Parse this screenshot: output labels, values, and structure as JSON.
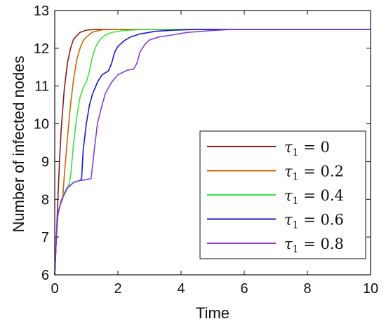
{
  "chart_data": {
    "type": "line",
    "xlabel": "Time",
    "ylabel": "Number of infected nodes",
    "xlim": [
      0,
      10
    ],
    "ylim": [
      6,
      13
    ],
    "xticks": [
      "0",
      "2",
      "4",
      "6",
      "8",
      "10"
    ],
    "yticks": [
      "6",
      "7",
      "8",
      "9",
      "10",
      "11",
      "12",
      "13"
    ],
    "grid": false,
    "legend_position": "bottom-right",
    "series": [
      {
        "name": "τ1 = 0",
        "color": "#8b1a1a",
        "points": [
          [
            0,
            6.0
          ],
          [
            0.05,
            7.0
          ],
          [
            0.1,
            8.0
          ],
          [
            0.15,
            9.0
          ],
          [
            0.2,
            9.8
          ],
          [
            0.3,
            10.9
          ],
          [
            0.4,
            11.6
          ],
          [
            0.5,
            12.0
          ],
          [
            0.6,
            12.25
          ],
          [
            0.8,
            12.42
          ],
          [
            1.0,
            12.48
          ],
          [
            1.3,
            12.5
          ],
          [
            10,
            12.5
          ]
        ]
      },
      {
        "name": "τ1 = 0.2",
        "color": "#c46a00",
        "points": [
          [
            0,
            6.0
          ],
          [
            0.05,
            7.0
          ],
          [
            0.1,
            7.6
          ],
          [
            0.15,
            7.8
          ],
          [
            0.2,
            7.9
          ],
          [
            0.25,
            8.0
          ],
          [
            0.3,
            8.6
          ],
          [
            0.4,
            9.6
          ],
          [
            0.5,
            10.5
          ],
          [
            0.6,
            11.2
          ],
          [
            0.7,
            11.7
          ],
          [
            0.8,
            12.0
          ],
          [
            0.9,
            12.2
          ],
          [
            1.0,
            12.3
          ],
          [
            1.2,
            12.43
          ],
          [
            1.5,
            12.49
          ],
          [
            2.0,
            12.5
          ],
          [
            10,
            12.5
          ]
        ]
      },
      {
        "name": "τ1 = 0.4",
        "color": "#3ee23e",
        "points": [
          [
            0,
            6.0
          ],
          [
            0.05,
            7.0
          ],
          [
            0.1,
            7.6
          ],
          [
            0.2,
            7.95
          ],
          [
            0.35,
            8.25
          ],
          [
            0.45,
            8.4
          ],
          [
            0.5,
            8.6
          ],
          [
            0.6,
            9.5
          ],
          [
            0.7,
            10.2
          ],
          [
            0.8,
            10.7
          ],
          [
            0.9,
            10.95
          ],
          [
            1.0,
            11.1
          ],
          [
            1.1,
            11.4
          ],
          [
            1.2,
            11.8
          ],
          [
            1.3,
            12.05
          ],
          [
            1.45,
            12.25
          ],
          [
            1.6,
            12.35
          ],
          [
            1.8,
            12.42
          ],
          [
            2.2,
            12.47
          ],
          [
            2.8,
            12.5
          ],
          [
            10,
            12.5
          ]
        ]
      },
      {
        "name": "τ1 = 0.6",
        "color": "#1818cc",
        "points": [
          [
            0,
            6.0
          ],
          [
            0.05,
            7.0
          ],
          [
            0.1,
            7.6
          ],
          [
            0.2,
            7.95
          ],
          [
            0.4,
            8.3
          ],
          [
            0.6,
            8.45
          ],
          [
            0.8,
            8.5
          ],
          [
            0.85,
            8.55
          ],
          [
            0.9,
            9.3
          ],
          [
            1.0,
            10.0
          ],
          [
            1.1,
            10.5
          ],
          [
            1.2,
            10.8
          ],
          [
            1.35,
            11.1
          ],
          [
            1.5,
            11.3
          ],
          [
            1.7,
            11.4
          ],
          [
            1.8,
            11.6
          ],
          [
            1.9,
            11.9
          ],
          [
            2.0,
            12.05
          ],
          [
            2.2,
            12.2
          ],
          [
            2.4,
            12.3
          ],
          [
            2.7,
            12.38
          ],
          [
            3.2,
            12.45
          ],
          [
            3.8,
            12.48
          ],
          [
            4.5,
            12.5
          ],
          [
            10,
            12.5
          ]
        ]
      },
      {
        "name": "τ1 = 0.8",
        "color": "#8a3adf",
        "points": [
          [
            0,
            6.0
          ],
          [
            0.05,
            7.0
          ],
          [
            0.1,
            7.6
          ],
          [
            0.2,
            7.95
          ],
          [
            0.4,
            8.3
          ],
          [
            0.6,
            8.45
          ],
          [
            0.8,
            8.5
          ],
          [
            1.0,
            8.52
          ],
          [
            1.15,
            8.55
          ],
          [
            1.25,
            9.3
          ],
          [
            1.35,
            10.0
          ],
          [
            1.5,
            10.5
          ],
          [
            1.6,
            10.8
          ],
          [
            1.8,
            11.1
          ],
          [
            2.0,
            11.3
          ],
          [
            2.3,
            11.42
          ],
          [
            2.5,
            11.45
          ],
          [
            2.6,
            11.6
          ],
          [
            2.7,
            11.9
          ],
          [
            2.85,
            12.1
          ],
          [
            3.0,
            12.22
          ],
          [
            3.3,
            12.3
          ],
          [
            3.7,
            12.35
          ],
          [
            4.2,
            12.42
          ],
          [
            5.0,
            12.47
          ],
          [
            5.6,
            12.5
          ],
          [
            10,
            12.5
          ]
        ]
      }
    ],
    "legend": [
      {
        "label": "τ1 = 0",
        "sym": "τ",
        "sub": "1",
        "rhs": "= 0"
      },
      {
        "label": "τ1 = 0.2",
        "sym": "τ",
        "sub": "1",
        "rhs": "= 0.2"
      },
      {
        "label": "τ1 = 0.4",
        "sym": "τ",
        "sub": "1",
        "rhs": "= 0.4"
      },
      {
        "label": "τ1 = 0.6",
        "sym": "τ",
        "sub": "1",
        "rhs": "= 0.6"
      },
      {
        "label": "τ1 = 0.8",
        "sym": "τ",
        "sub": "1",
        "rhs": "= 0.8"
      }
    ]
  }
}
